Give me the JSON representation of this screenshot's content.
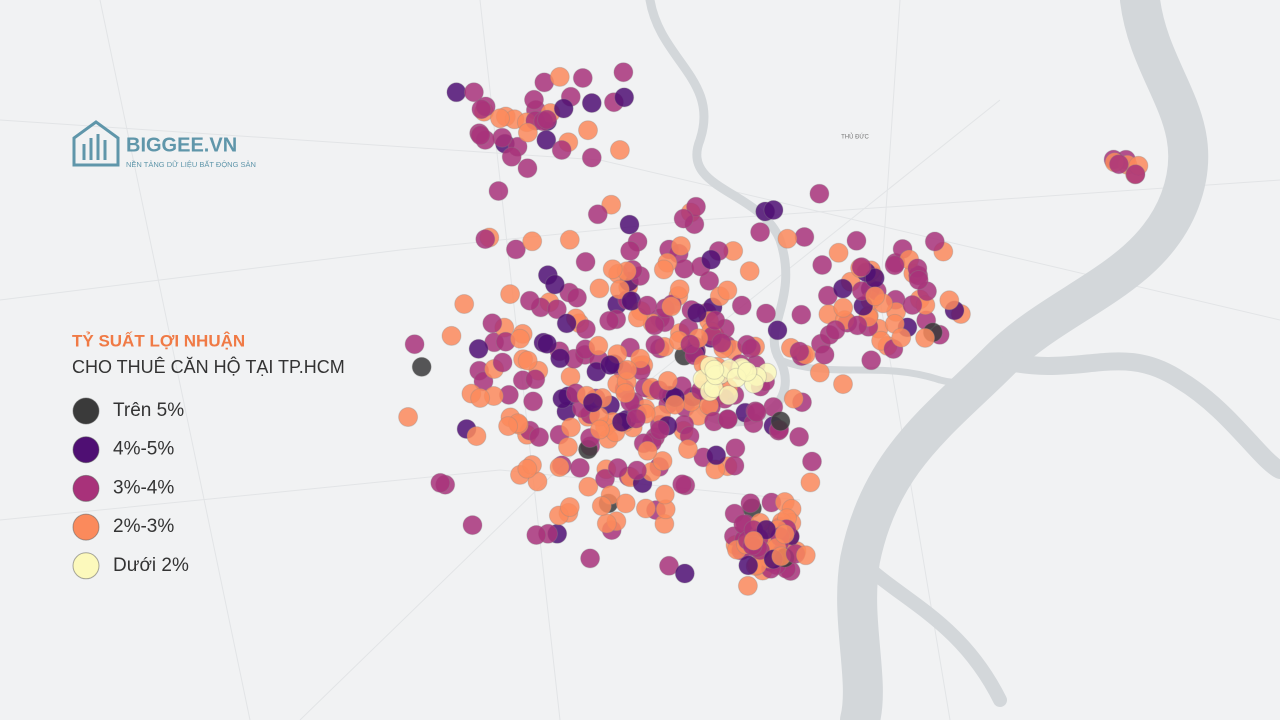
{
  "brand": {
    "name": "BIGGEE.VN",
    "tagline": "NỀN TẢNG DỮ LIỆU BẤT ĐỘNG SẢN"
  },
  "title": "TỶ SUẤT LỢI NHUẬN",
  "subtitle": "CHO THUÊ CĂN HỘ TẠI TP.HCM",
  "map_labels": [
    "THỦ ĐỨC"
  ],
  "legend": [
    {
      "label": "Trên 5%",
      "color": "#3a3a3a"
    },
    {
      "label": "4%-5%",
      "color": "#4f0f73"
    },
    {
      "label": "3%-4%",
      "color": "#a8327a"
    },
    {
      "label": "2%-3%",
      "color": "#fb8a5c"
    },
    {
      "label": "Dưới 2%",
      "color": "#fcf9bc"
    }
  ]
}
